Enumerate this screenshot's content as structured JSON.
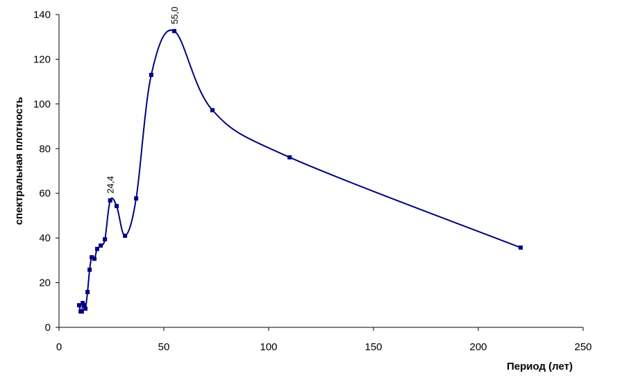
{
  "chart_data": {
    "type": "line",
    "x_label": "Период (лет)",
    "y_label": "спектральная плотность",
    "x": [
      9.6,
      10.3,
      10.9,
      11.3,
      11.9,
      12.6,
      13.6,
      14.6,
      15.6,
      16.9,
      18.2,
      19.9,
      21.9,
      24.4,
      27.5,
      31.5,
      36.8,
      44.0,
      55.0,
      73.2,
      110,
      220.2
    ],
    "series": [
      {
        "color": "#000080",
        "values": [
          9.9,
          7.1,
          7.1,
          10.9,
          9.9,
          8.4,
          15.8,
          25.8,
          31.4,
          30.7,
          35.1,
          36.6,
          39.4,
          56.8,
          54.3,
          41,
          57.7,
          113,
          132.6,
          97.2,
          76.1,
          35.7
        ],
        "x_value_labels": [
          null,
          null,
          null,
          null,
          null,
          null,
          null,
          null,
          null,
          null,
          null,
          null,
          null,
          "24,4",
          null,
          null,
          null,
          null,
          "55,0",
          null,
          null,
          null
        ]
      }
    ],
    "xlim": [
      0,
      250
    ],
    "xticks": [
      0,
      50,
      100,
      150,
      200,
      250
    ],
    "ylim": [
      0,
      140
    ],
    "yticks": [
      0,
      20,
      40,
      60,
      80,
      100,
      120,
      140
    ],
    "grid": false,
    "smooth": true
  }
}
